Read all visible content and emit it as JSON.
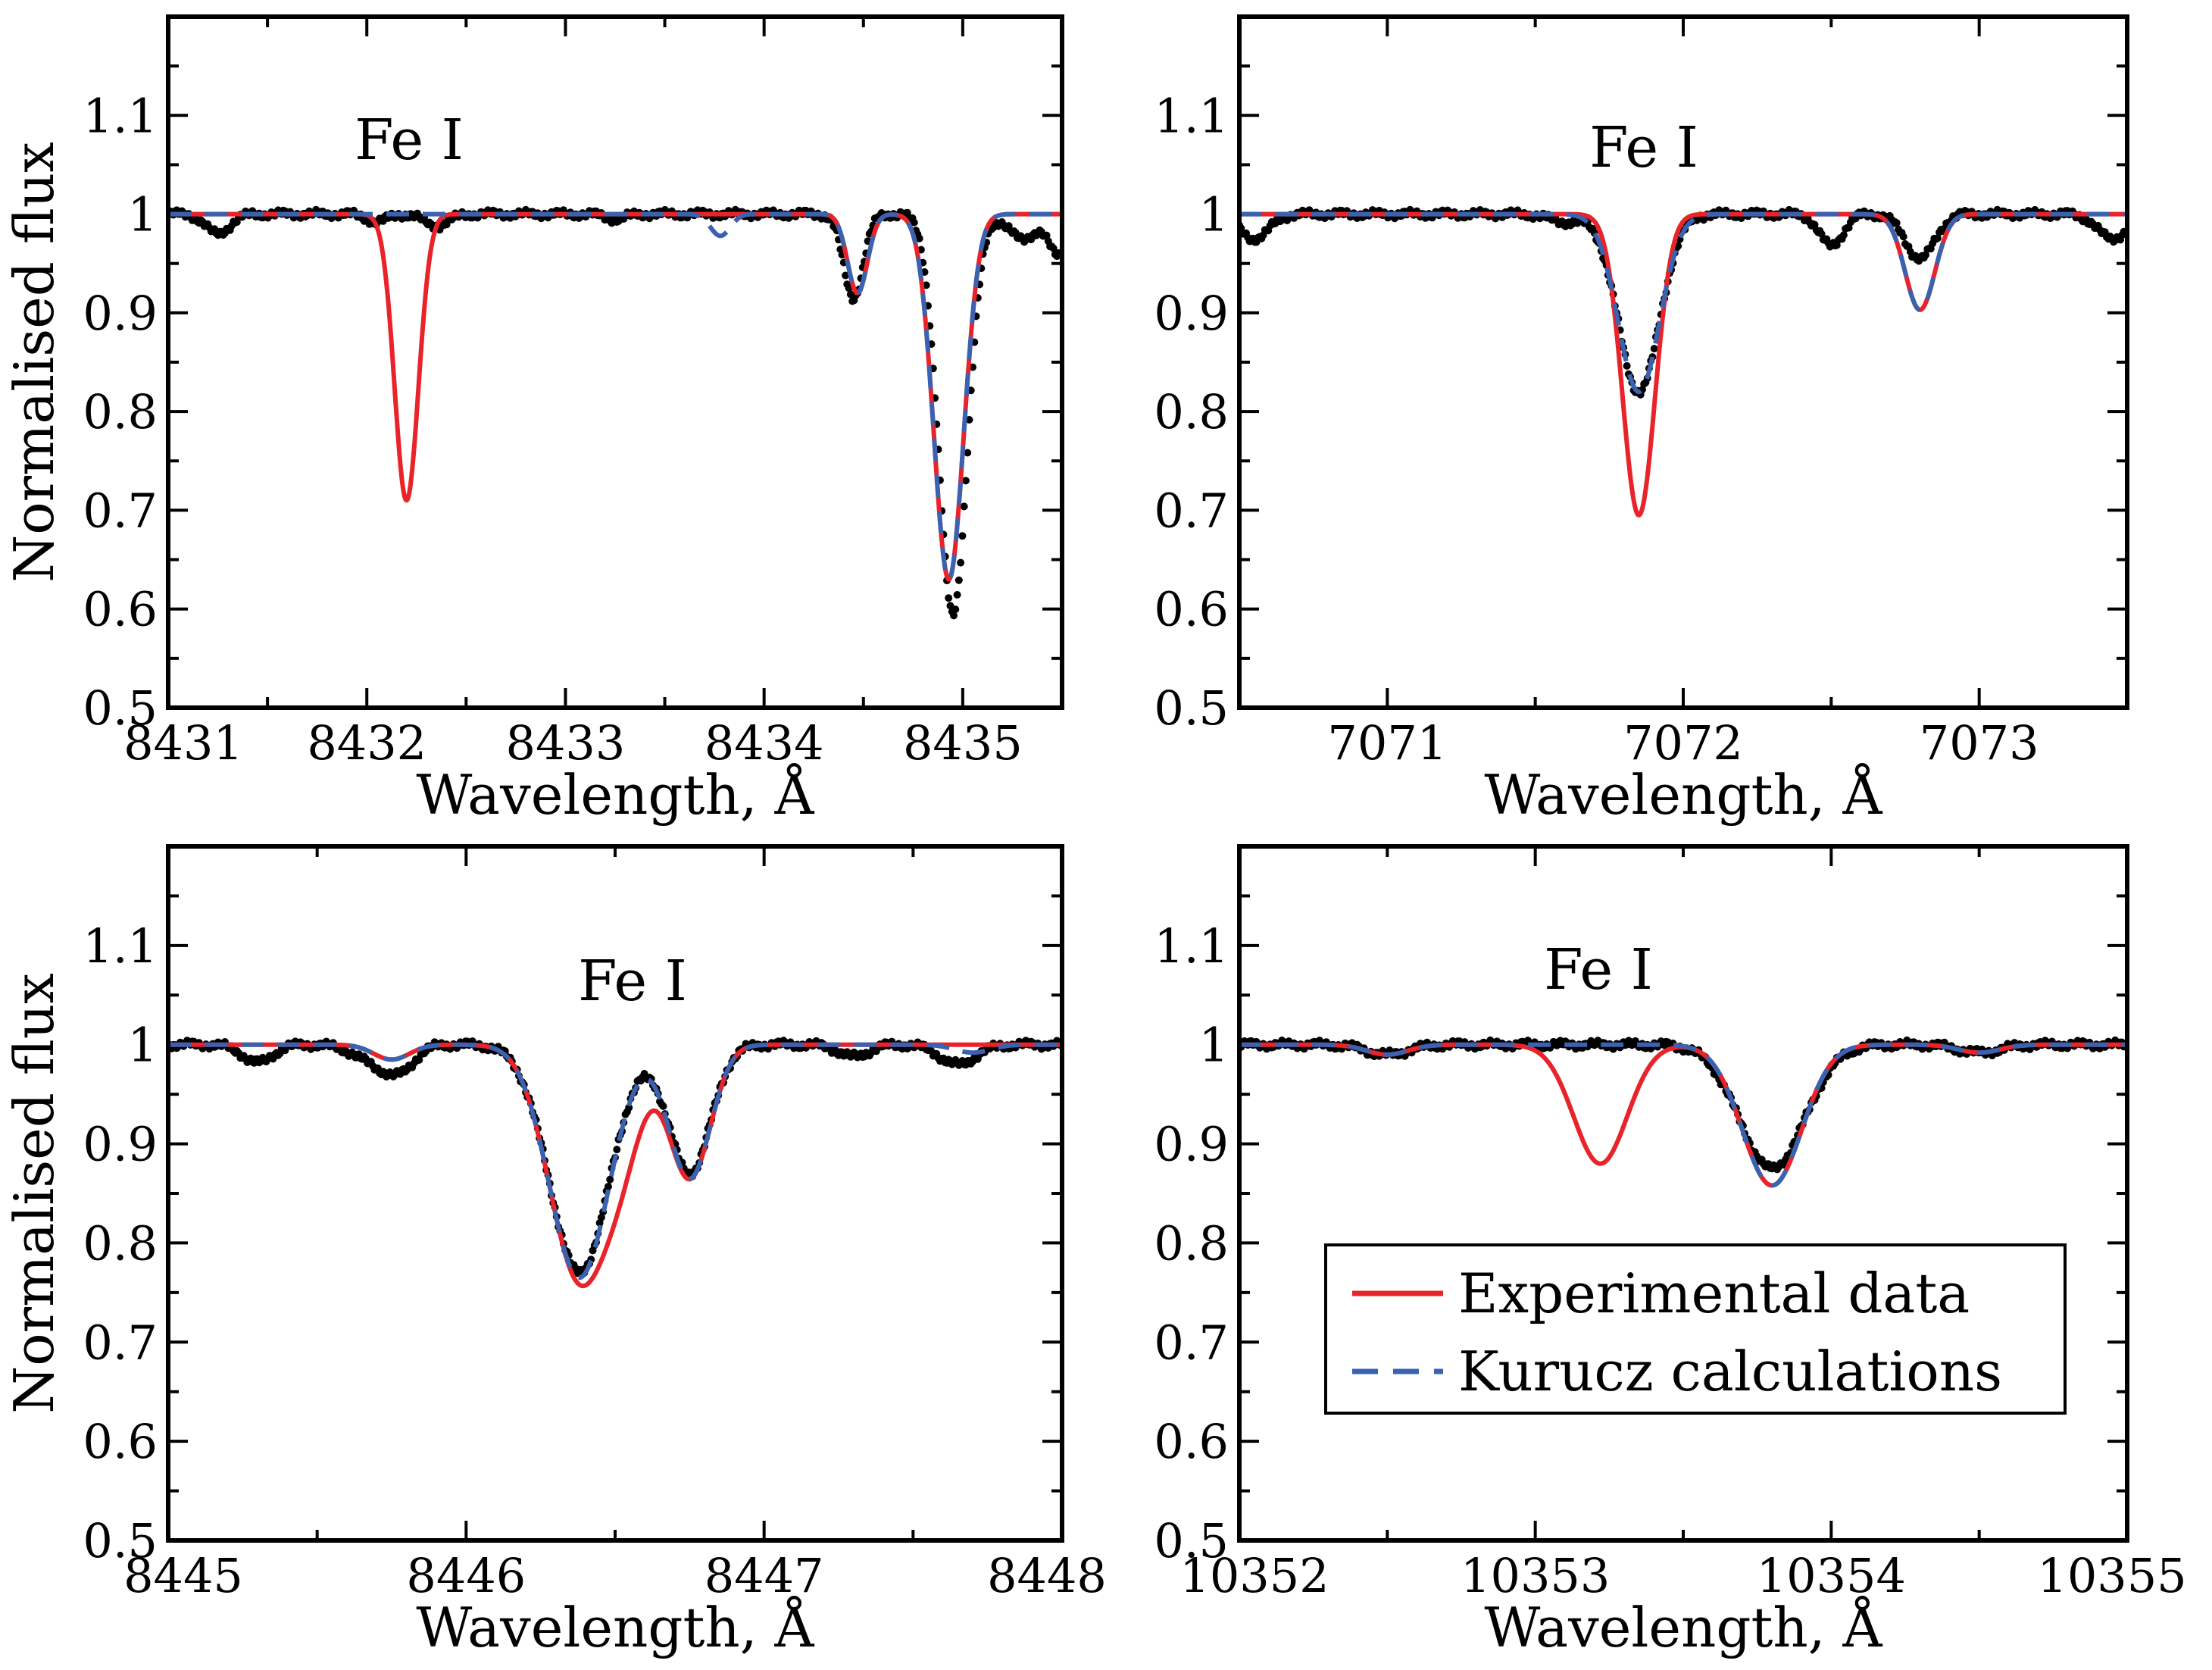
{
  "colors": {
    "observed": "#000000",
    "experimental": "#e8232a",
    "kurucz": "#3a62b0"
  },
  "legend": {
    "entries": [
      {
        "label": "Experimental data",
        "series": "experimental"
      },
      {
        "label": "Kurucz calculations",
        "series": "kurucz"
      }
    ],
    "position": "bottom-right of panel 4"
  },
  "chart_data": [
    {
      "type": "line",
      "title": "Fe I",
      "xlabel": "Wavelength, Å",
      "ylabel": "Normalised flux",
      "xlim": [
        8431,
        8435.5
      ],
      "ylim": [
        0.5,
        1.2
      ],
      "xticks": [
        "8431",
        "8432",
        "8433",
        "8434",
        "8435"
      ],
      "yticks": [
        "0.5",
        "0.6",
        "0.7",
        "0.8",
        "0.9",
        "1",
        "1.1"
      ],
      "lines": {
        "experimental": [
          {
            "c": 8432.2,
            "d": 0.29,
            "w": 0.06
          },
          {
            "c": 8434.47,
            "d": 0.08,
            "w": 0.05
          },
          {
            "c": 8434.93,
            "d": 0.37,
            "w": 0.075
          }
        ],
        "kurucz": [
          {
            "c": 8433.78,
            "d": 0.022,
            "w": 0.05
          },
          {
            "c": 8434.47,
            "d": 0.08,
            "w": 0.05
          },
          {
            "c": 8434.93,
            "d": 0.37,
            "w": 0.075
          }
        ],
        "observed": [
          {
            "c": 8431.25,
            "d": 0.02,
            "w": 0.06
          },
          {
            "c": 8432.05,
            "d": 0.008,
            "w": 0.05
          },
          {
            "c": 8432.35,
            "d": 0.012,
            "w": 0.06
          },
          {
            "c": 8433.25,
            "d": 0.005,
            "w": 0.05
          },
          {
            "c": 8434.45,
            "d": 0.085,
            "w": 0.05
          },
          {
            "c": 8434.95,
            "d": 0.405,
            "w": 0.072
          },
          {
            "c": 8435.3,
            "d": 0.025,
            "w": 0.07
          },
          {
            "c": 8435.48,
            "d": 0.04,
            "w": 0.05
          }
        ]
      }
    },
    {
      "type": "line",
      "title": "Fe I",
      "xlabel": "Wavelength, Å",
      "ylabel": "",
      "xlim": [
        7070.5,
        7073.5
      ],
      "ylim": [
        0.5,
        1.2
      ],
      "xticks": [
        "7071",
        "7072",
        "7073"
      ],
      "yticks": [
        "0.5",
        "0.6",
        "0.7",
        "0.8",
        "0.9",
        "1",
        "1.1"
      ],
      "lines": {
        "experimental": [
          {
            "c": 7071.85,
            "d": 0.305,
            "w": 0.055
          },
          {
            "c": 7072.8,
            "d": 0.097,
            "w": 0.05
          }
        ],
        "kurucz": [
          {
            "c": 7071.85,
            "d": 0.18,
            "w": 0.07
          },
          {
            "c": 7072.8,
            "d": 0.097,
            "w": 0.05
          }
        ],
        "observed": [
          {
            "c": 7070.55,
            "d": 0.025,
            "w": 0.05
          },
          {
            "c": 7071.6,
            "d": 0.008,
            "w": 0.05
          },
          {
            "c": 7071.85,
            "d": 0.18,
            "w": 0.07
          },
          {
            "c": 7072.5,
            "d": 0.032,
            "w": 0.04
          },
          {
            "c": 7072.8,
            "d": 0.045,
            "w": 0.05
          },
          {
            "c": 7073.45,
            "d": 0.025,
            "w": 0.05
          }
        ]
      }
    },
    {
      "type": "line",
      "title": "Fe I",
      "xlabel": "Wavelength, Å",
      "ylabel": "Normalised flux",
      "xlim": [
        8445,
        8448
      ],
      "ylim": [
        0.5,
        1.2
      ],
      "xticks": [
        "8445",
        "8446",
        "8447",
        "8448"
      ],
      "yticks": [
        "0.5",
        "0.6",
        "0.7",
        "0.8",
        "0.9",
        "1",
        "1.1"
      ],
      "lines": {
        "experimental": [
          {
            "c": 8445.75,
            "d": 0.015,
            "w": 0.06
          },
          {
            "c": 8446.38,
            "d": 0.235,
            "w": 0.1
          },
          {
            "c": 8446.53,
            "d": 0.07,
            "w": 0.07
          },
          {
            "c": 8446.75,
            "d": 0.135,
            "w": 0.07
          }
        ],
        "kurucz": [
          {
            "c": 8445.75,
            "d": 0.015,
            "w": 0.06
          },
          {
            "c": 8446.38,
            "d": 0.235,
            "w": 0.1
          },
          {
            "c": 8446.75,
            "d": 0.135,
            "w": 0.07
          },
          {
            "c": 8447.7,
            "d": 0.008,
            "w": 0.06
          }
        ],
        "observed": [
          {
            "c": 8445.3,
            "d": 0.018,
            "w": 0.05
          },
          {
            "c": 8445.7,
            "d": 0.018,
            "w": 0.07
          },
          {
            "c": 8445.78,
            "d": 0.02,
            "w": 0.05
          },
          {
            "c": 8446.38,
            "d": 0.23,
            "w": 0.1
          },
          {
            "c": 8446.75,
            "d": 0.13,
            "w": 0.07
          },
          {
            "c": 8447.3,
            "d": 0.012,
            "w": 0.05
          },
          {
            "c": 8447.65,
            "d": 0.02,
            "w": 0.06
          }
        ]
      }
    },
    {
      "type": "line",
      "title": "Fe I",
      "xlabel": "Wavelength, Å",
      "ylabel": "",
      "xlim": [
        10352,
        10355
      ],
      "ylim": [
        0.5,
        1.2
      ],
      "xticks": [
        "10352",
        "10353",
        "10354",
        "10355"
      ],
      "yticks": [
        "0.5",
        "0.6",
        "0.7",
        "0.8",
        "0.9",
        "1",
        "1.1"
      ],
      "lines": {
        "experimental": [
          {
            "c": 10352.5,
            "d": 0.01,
            "w": 0.07
          },
          {
            "c": 10353.22,
            "d": 0.12,
            "w": 0.09
          },
          {
            "c": 10353.8,
            "d": 0.142,
            "w": 0.1
          },
          {
            "c": 10354.5,
            "d": 0.008,
            "w": 0.07
          }
        ],
        "kurucz": [
          {
            "c": 10352.5,
            "d": 0.01,
            "w": 0.07
          },
          {
            "c": 10353.8,
            "d": 0.142,
            "w": 0.1
          },
          {
            "c": 10354.5,
            "d": 0.008,
            "w": 0.07
          }
        ],
        "observed": [
          {
            "c": 10352.5,
            "d": 0.01,
            "w": 0.07
          },
          {
            "c": 10353.8,
            "d": 0.125,
            "w": 0.11
          },
          {
            "c": 10354.5,
            "d": 0.008,
            "w": 0.07
          }
        ]
      }
    }
  ]
}
